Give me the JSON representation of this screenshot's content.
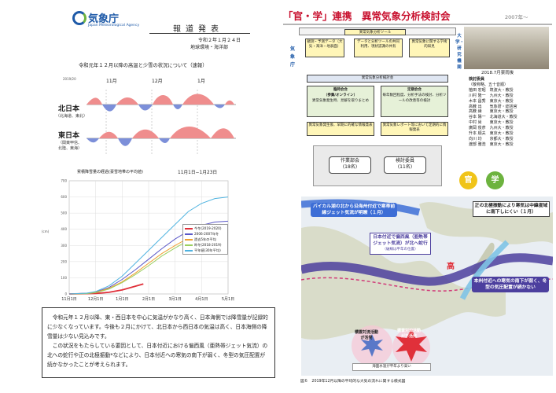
{
  "left": {
    "logo_name": "気象庁",
    "logo_en": "Japan Meteorological Agency",
    "press_release": "報道発表",
    "date": "令和２年１月２４日",
    "dept": "地球環境・海洋部",
    "subtitle": "令和元年１２月以降の高温と少雪の状況について（速報）",
    "timeline": {
      "year": "2019/20",
      "months": [
        "11月",
        "12月",
        "1月"
      ],
      "regions": [
        {
          "name": "北日本",
          "sub": "（北海道、東北）"
        },
        {
          "name": "東日本",
          "sub1": "（関東甲信、",
          "sub2": "北陸、東海）"
        }
      ]
    },
    "chart": {
      "title": "累積降雪量の経過(豪雪地帯の平均値)",
      "period": "11月1日−1月23日",
      "yunit": "(cm)",
      "legend": [
        {
          "label": "今冬(2019-2020)",
          "color": "#e0303a"
        },
        {
          "label": "2006-2007年冬",
          "color": "#5a57c8"
        },
        {
          "label": "過去5年の平均",
          "color": "#f0a030"
        },
        {
          "label": "昨冬(2018-2019)",
          "color": "#9bcf5f"
        },
        {
          "label": "平年値(30年平均)",
          "color": "#4fb3e0"
        }
      ]
    },
    "chart_data": {
      "type": "line",
      "title": "累積降雪量の経過(豪雪地帯の平均値)",
      "x_ticks": [
        "11月1日",
        "12月1日",
        "1月1日",
        "2月1日",
        "3月1日",
        "4月1日",
        "5月1日"
      ],
      "y_ticks": [
        "0",
        "100",
        "200",
        "300",
        "400",
        "500",
        "600",
        "700"
      ],
      "ylim": [
        0,
        700
      ],
      "ylabel": "(cm)",
      "series": [
        {
          "name": "今冬(2019-2020)",
          "color": "#e0303a",
          "x": [
            0,
            30,
            45,
            60,
            75,
            84
          ],
          "y": [
            0,
            3,
            10,
            25,
            48,
            62
          ]
        },
        {
          "name": "2006-2007年冬",
          "color": "#5a57c8",
          "x": [
            0,
            20,
            30,
            45,
            60,
            75,
            90,
            105,
            120,
            135,
            150,
            165,
            180
          ],
          "y": [
            0,
            5,
            12,
            40,
            90,
            150,
            215,
            280,
            340,
            390,
            425,
            445,
            450
          ]
        },
        {
          "name": "過去5年の平均",
          "color": "#f0a030",
          "x": [
            0,
            20,
            30,
            45,
            60,
            75,
            90,
            105,
            120,
            135,
            150,
            165,
            180
          ],
          "y": [
            0,
            3,
            10,
            35,
            75,
            130,
            190,
            250,
            300,
            345,
            375,
            390,
            395
          ]
        },
        {
          "name": "昨冬(2018-2019)",
          "color": "#9bcf5f",
          "x": [
            0,
            20,
            30,
            45,
            60,
            75,
            90,
            105,
            120,
            135,
            150,
            165,
            180
          ],
          "y": [
            0,
            2,
            8,
            30,
            70,
            120,
            175,
            235,
            285,
            330,
            365,
            385,
            390
          ]
        },
        {
          "name": "平年値(30年平均)",
          "color": "#4fb3e0",
          "x": [
            0,
            20,
            30,
            45,
            60,
            75,
            90,
            105,
            120,
            135,
            150,
            165,
            180
          ],
          "y": [
            0,
            5,
            15,
            50,
            110,
            190,
            270,
            350,
            430,
            510,
            560,
            590,
            600
          ]
        }
      ]
    },
    "text": [
      "令和元年１２月以降、東・西日本を中心に気温がかなり高く、日本海側では降雪量が記録的に少なくなっています。今後も２月にかけて、北日本から西日本の気温は高く、日本海側の降雪量は少ない見込みです。",
      "この状況をもたらしている要因として、日本付近における偏西風（亜熱帯ジェット気流）の北への蛇行や正の北極振動*などにより、日本付近への寒気の南下が弱く、冬型の気圧配置が続かなかったことが考えられます。"
    ]
  },
  "right": {
    "title": "「官・学」連携　異常気象分析検討会",
    "year": "2007年〜",
    "org": {
      "top_box": "異常気象分析ツール",
      "tool1": "観測・予測データ（大気・海洋・地表面）",
      "tool2": "データと分析ツールの共同利用、現状認識の共有",
      "tool3": "異常気象に関する学術的知見",
      "jma": "気象庁",
      "univ": "大学・研究機関",
      "kentokai": "異常気象分析検討会",
      "rinji": "臨時会合",
      "rinji_sub": "（参集/オンライン）",
      "rinji_desc": "異常気象発生時、見解を取りまとめ",
      "teirei": "定期会合",
      "teirei_desc": "毎年数回程度、分析手法の検討、分析ツールの改善等の検討",
      "out1": "異常気象発生後、早期に的確な情報発表",
      "out2": "異常気象レポート等において定期的に情報発表",
      "sakugyo": "作業部会",
      "sakugyo_n": "(18名)",
      "iin": "検討委員",
      "iin_n": "(11名)"
    },
    "photo_caption": "2018.7月豪雨後",
    "members_title": "検討委員",
    "members_sub": "（敬称略、五十音順）",
    "members": [
      "植田 宏昭　筑波大・教授",
      "川村 隆一　九州大・教授",
      "木本 昌秀　東京大・教授",
      "高薮 出　　気象研・総括官",
      "高薮 縁　　東京大・教授",
      "谷本 陽一　北海道大・教授",
      "中村 尚　　東京大・教授",
      "廣岡 俊彦　九州大・教授",
      "升本 順夫　東京大・教授",
      "向川 均　　京都大・教授",
      "渡部 雅浩　東京大・教授"
    ],
    "kan": "官",
    "gaku": "学",
    "map": {
      "c1": "バイカル湖の北から沿海州付近で寒帯前線ジェット気流が明瞭（１月）",
      "c2": "正の北極振動により寒気は中緯度域に南下しにくい（１月）",
      "c3": "日本付近で偏西風（亜熱帯ジェット気流）が北へ蛇行",
      "c3_sub": "（破線は平年の位置）",
      "high": "高",
      "c4": "本州付近への寒気の南下が弱く、冬型の気圧配置が続かない",
      "c5": "積雲対流活動が活発",
      "c6": "積雲対流活動が不活発",
      "sst": "海面水温が平年より高い"
    },
    "fig_caption": "図６　2019年12月以降の平均的な大気の流れに関する模式図"
  }
}
